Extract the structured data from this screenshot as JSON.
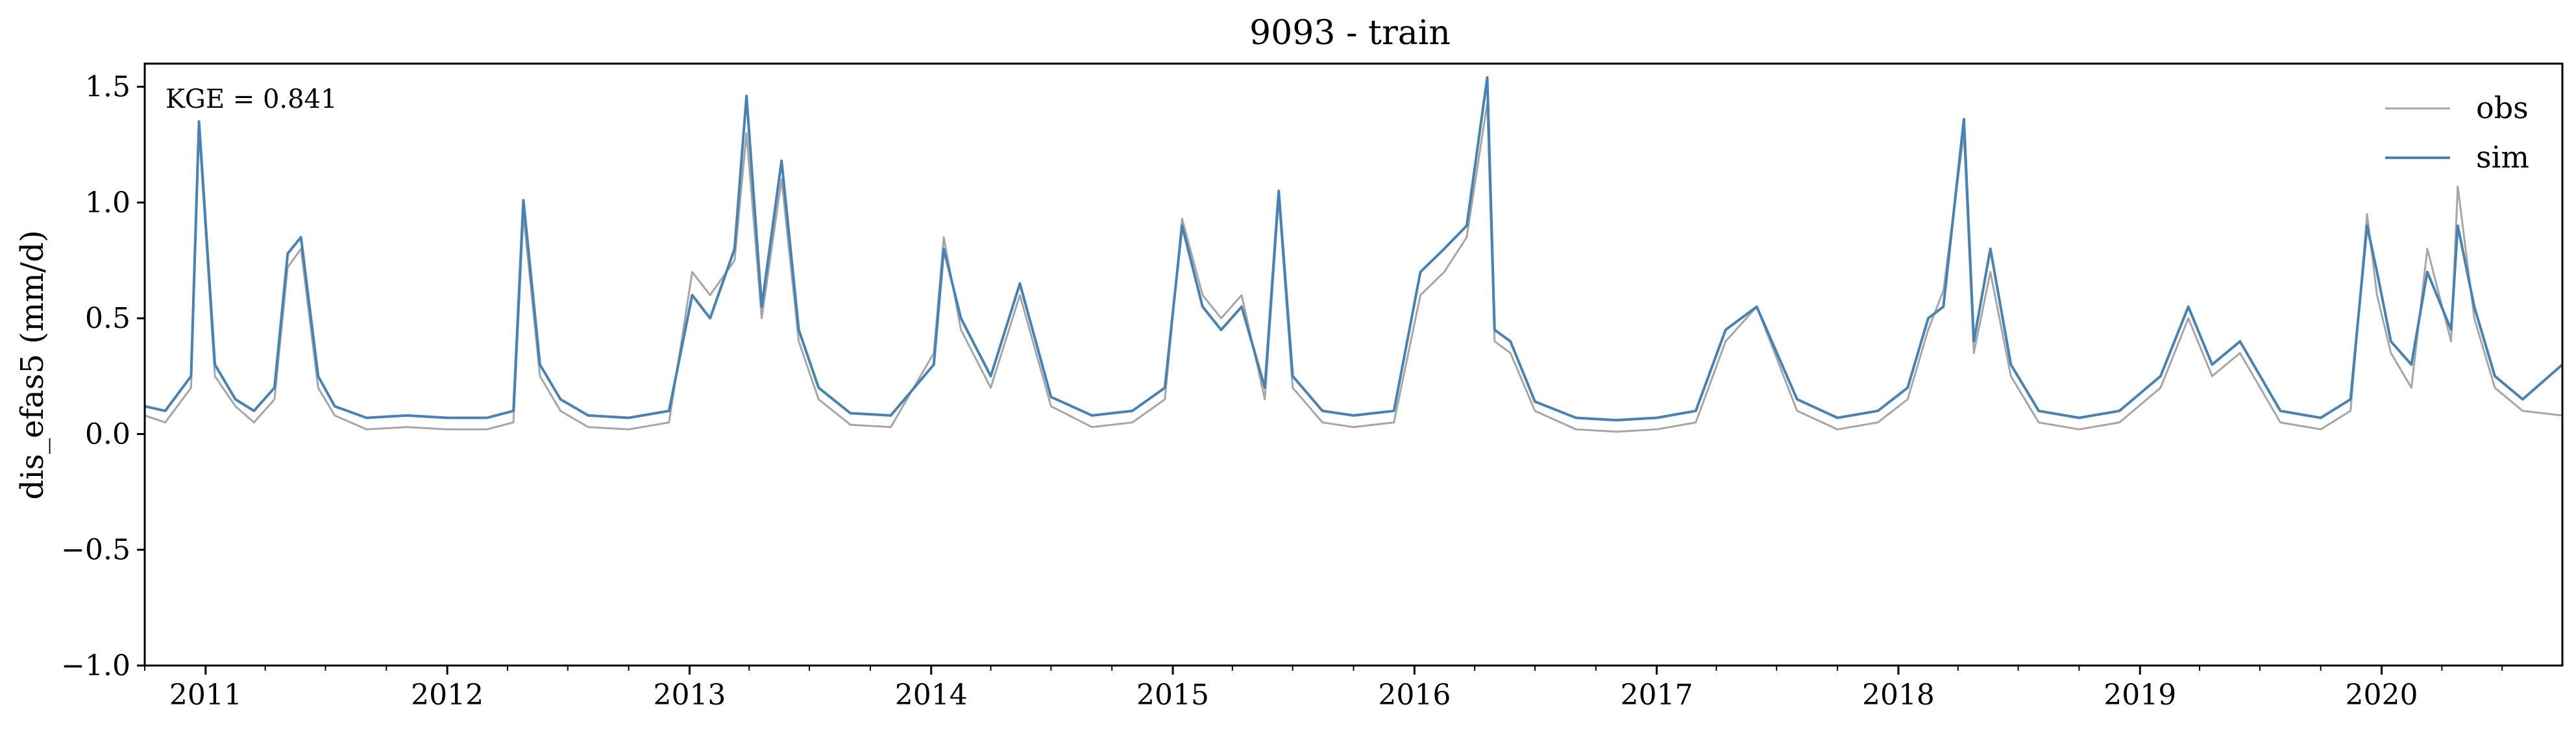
{
  "chart_data": {
    "type": "line",
    "title": "9093 - train",
    "xlabel": "",
    "ylabel": "dis_efas5 (mm/d)",
    "xlim": [
      "2010-10-01",
      "2020-09-30"
    ],
    "ylim": [
      -1.0,
      1.6
    ],
    "ytick_values": [
      -1.0,
      -0.5,
      0.0,
      0.5,
      1.0,
      1.5
    ],
    "ytick_labels": [
      "−1.0",
      "−0.5",
      "0.0",
      "0.5",
      "1.0",
      "1.5"
    ],
    "xtick_values": [
      "2011-01-01",
      "2012-01-01",
      "2013-01-01",
      "2014-01-01",
      "2015-01-01",
      "2016-01-01",
      "2017-01-01",
      "2018-01-01",
      "2019-01-01",
      "2020-01-01"
    ],
    "xtick_labels": [
      "2011",
      "2012",
      "2013",
      "2014",
      "2015",
      "2016",
      "2017",
      "2018",
      "2019",
      "2020"
    ],
    "grid": false,
    "legend_position": "top-right",
    "annotation": "KGE = 0.841",
    "colors": {
      "obs": "#a6a6a6",
      "sim": "#4682b4"
    },
    "series": [
      {
        "name": "obs",
        "x": [
          "2010-10-01",
          "2010-11-01",
          "2010-12-10",
          "2010-12-22",
          "2011-01-15",
          "2011-02-15",
          "2011-03-15",
          "2011-04-15",
          "2011-05-05",
          "2011-05-25",
          "2011-06-20",
          "2011-07-15",
          "2011-09-01",
          "2011-11-01",
          "2012-01-01",
          "2012-03-01",
          "2012-04-10",
          "2012-04-25",
          "2012-05-20",
          "2012-06-20",
          "2012-08-01",
          "2012-10-01",
          "2012-12-01",
          "2013-01-05",
          "2013-02-01",
          "2013-03-10",
          "2013-03-28",
          "2013-04-20",
          "2013-05-20",
          "2013-06-15",
          "2013-07-15",
          "2013-09-01",
          "2013-11-01",
          "2014-01-05",
          "2014-01-20",
          "2014-02-15",
          "2014-04-01",
          "2014-05-15",
          "2014-07-01",
          "2014-09-01",
          "2014-11-01",
          "2014-12-20",
          "2015-01-15",
          "2015-02-15",
          "2015-03-15",
          "2015-04-15",
          "2015-05-20",
          "2015-06-10",
          "2015-07-01",
          "2015-08-15",
          "2015-10-01",
          "2015-12-01",
          "2016-01-10",
          "2016-02-15",
          "2016-03-20",
          "2016-04-20",
          "2016-05-01",
          "2016-05-25",
          "2016-07-01",
          "2016-09-01",
          "2016-11-01",
          "2017-01-01",
          "2017-03-01",
          "2017-04-15",
          "2017-06-01",
          "2017-08-01",
          "2017-10-01",
          "2017-12-01",
          "2018-01-15",
          "2018-02-15",
          "2018-03-10",
          "2018-04-10",
          "2018-04-25",
          "2018-05-20",
          "2018-06-20",
          "2018-08-01",
          "2018-10-01",
          "2018-12-01",
          "2019-02-01",
          "2019-03-15",
          "2019-04-20",
          "2019-06-01",
          "2019-08-01",
          "2019-10-01",
          "2019-11-15",
          "2019-12-10",
          "2019-12-25",
          "2020-01-15",
          "2020-02-15",
          "2020-03-10",
          "2020-04-15",
          "2020-04-25",
          "2020-05-20",
          "2020-06-20",
          "2020-08-01",
          "2020-09-30"
        ],
        "values": [
          0.08,
          0.05,
          0.2,
          1.32,
          0.25,
          0.12,
          0.05,
          0.15,
          0.72,
          0.8,
          0.2,
          0.08,
          0.02,
          0.03,
          0.02,
          0.02,
          0.05,
          0.95,
          0.25,
          0.1,
          0.03,
          0.02,
          0.05,
          0.7,
          0.6,
          0.75,
          1.3,
          0.5,
          1.1,
          0.4,
          0.15,
          0.04,
          0.03,
          0.35,
          0.85,
          0.45,
          0.2,
          0.6,
          0.12,
          0.03,
          0.05,
          0.15,
          0.93,
          0.6,
          0.5,
          0.6,
          0.15,
          1.02,
          0.2,
          0.05,
          0.03,
          0.05,
          0.6,
          0.7,
          0.85,
          1.43,
          0.4,
          0.35,
          0.1,
          0.02,
          0.01,
          0.02,
          0.05,
          0.4,
          0.55,
          0.1,
          0.02,
          0.05,
          0.15,
          0.45,
          0.62,
          1.3,
          0.35,
          0.7,
          0.25,
          0.05,
          0.02,
          0.05,
          0.2,
          0.5,
          0.25,
          0.35,
          0.05,
          0.02,
          0.1,
          0.95,
          0.6,
          0.35,
          0.2,
          0.8,
          0.4,
          1.07,
          0.5,
          0.2,
          0.1,
          0.08
        ]
      },
      {
        "name": "sim",
        "x": [
          "2010-10-01",
          "2010-11-01",
          "2010-12-10",
          "2010-12-22",
          "2011-01-15",
          "2011-02-15",
          "2011-03-15",
          "2011-04-15",
          "2011-05-05",
          "2011-05-25",
          "2011-06-20",
          "2011-07-15",
          "2011-09-01",
          "2011-11-01",
          "2012-01-01",
          "2012-03-01",
          "2012-04-10",
          "2012-04-25",
          "2012-05-20",
          "2012-06-20",
          "2012-08-01",
          "2012-10-01",
          "2012-12-01",
          "2013-01-05",
          "2013-02-01",
          "2013-03-10",
          "2013-03-28",
          "2013-04-20",
          "2013-05-20",
          "2013-06-15",
          "2013-07-15",
          "2013-09-01",
          "2013-11-01",
          "2014-01-05",
          "2014-01-20",
          "2014-02-15",
          "2014-04-01",
          "2014-05-15",
          "2014-07-01",
          "2014-09-01",
          "2014-11-01",
          "2014-12-20",
          "2015-01-15",
          "2015-02-15",
          "2015-03-15",
          "2015-04-15",
          "2015-05-20",
          "2015-06-10",
          "2015-07-01",
          "2015-08-15",
          "2015-10-01",
          "2015-12-01",
          "2016-01-10",
          "2016-02-15",
          "2016-03-20",
          "2016-04-20",
          "2016-05-01",
          "2016-05-25",
          "2016-07-01",
          "2016-09-01",
          "2016-11-01",
          "2017-01-01",
          "2017-03-01",
          "2017-04-15",
          "2017-06-01",
          "2017-08-01",
          "2017-10-01",
          "2017-12-01",
          "2018-01-15",
          "2018-02-15",
          "2018-03-10",
          "2018-04-10",
          "2018-04-25",
          "2018-05-20",
          "2018-06-20",
          "2018-08-01",
          "2018-10-01",
          "2018-12-01",
          "2019-02-01",
          "2019-03-15",
          "2019-04-20",
          "2019-06-01",
          "2019-08-01",
          "2019-10-01",
          "2019-11-15",
          "2019-12-10",
          "2019-12-25",
          "2020-01-15",
          "2020-02-15",
          "2020-03-10",
          "2020-04-15",
          "2020-04-25",
          "2020-05-20",
          "2020-06-20",
          "2020-08-01",
          "2020-09-30"
        ],
        "values": [
          0.12,
          0.1,
          0.25,
          1.35,
          0.3,
          0.15,
          0.1,
          0.2,
          0.78,
          0.85,
          0.25,
          0.12,
          0.07,
          0.08,
          0.07,
          0.07,
          0.1,
          1.01,
          0.3,
          0.15,
          0.08,
          0.07,
          0.1,
          0.6,
          0.5,
          0.8,
          1.46,
          0.55,
          1.18,
          0.45,
          0.2,
          0.09,
          0.08,
          0.3,
          0.8,
          0.5,
          0.25,
          0.65,
          0.16,
          0.08,
          0.1,
          0.2,
          0.9,
          0.55,
          0.45,
          0.55,
          0.2,
          1.05,
          0.25,
          0.1,
          0.08,
          0.1,
          0.7,
          0.8,
          0.9,
          1.54,
          0.45,
          0.4,
          0.14,
          0.07,
          0.06,
          0.07,
          0.1,
          0.45,
          0.55,
          0.15,
          0.07,
          0.1,
          0.2,
          0.5,
          0.55,
          1.36,
          0.4,
          0.8,
          0.3,
          0.1,
          0.07,
          0.1,
          0.25,
          0.55,
          0.3,
          0.4,
          0.1,
          0.07,
          0.15,
          0.9,
          0.7,
          0.4,
          0.3,
          0.7,
          0.45,
          0.9,
          0.55,
          0.25,
          0.15,
          0.3
        ]
      }
    ]
  }
}
